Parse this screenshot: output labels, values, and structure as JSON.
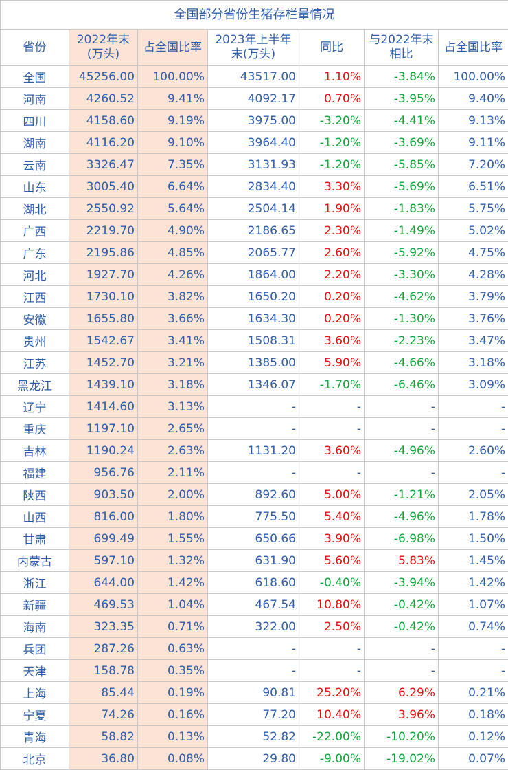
{
  "title": "全国部分省份生猪存栏量情况",
  "table": {
    "header": [
      "省份",
      "2022年末\n(万头)",
      "占全国比率",
      "2023年上半年\n末(万头)",
      "同比",
      "与2022年末\n相比",
      "占全国比率"
    ],
    "rows": [
      [
        "全国",
        "45256.00",
        "100.00%",
        "43517.00",
        "1.10%",
        "-3.84%",
        "100.00%"
      ],
      [
        "河南",
        "4260.52",
        "9.41%",
        "4092.17",
        "0.70%",
        "-3.95%",
        "9.40%"
      ],
      [
        "四川",
        "4158.60",
        "9.19%",
        "3975.00",
        "-3.20%",
        "-4.41%",
        "9.13%"
      ],
      [
        "湖南",
        "4116.20",
        "9.10%",
        "3964.40",
        "-1.20%",
        "-3.69%",
        "9.11%"
      ],
      [
        "云南",
        "3326.47",
        "7.35%",
        "3131.93",
        "-1.20%",
        "-5.85%",
        "7.20%"
      ],
      [
        "山东",
        "3005.40",
        "6.64%",
        "2834.40",
        "3.30%",
        "-5.69%",
        "6.51%"
      ],
      [
        "湖北",
        "2550.92",
        "5.64%",
        "2504.14",
        "1.90%",
        "-1.83%",
        "5.75%"
      ],
      [
        "广西",
        "2219.70",
        "4.90%",
        "2186.65",
        "2.30%",
        "-1.49%",
        "5.02%"
      ],
      [
        "广东",
        "2195.86",
        "4.85%",
        "2065.77",
        "2.60%",
        "-5.92%",
        "4.75%"
      ],
      [
        "河北",
        "1927.70",
        "4.26%",
        "1864.00",
        "2.20%",
        "-3.30%",
        "4.28%"
      ],
      [
        "江西",
        "1730.10",
        "3.82%",
        "1650.20",
        "0.20%",
        "-4.62%",
        "3.79%"
      ],
      [
        "安徽",
        "1655.80",
        "3.66%",
        "1634.30",
        "0.20%",
        "-1.30%",
        "3.76%"
      ],
      [
        "贵州",
        "1542.67",
        "3.41%",
        "1508.31",
        "3.60%",
        "-2.23%",
        "3.47%"
      ],
      [
        "江苏",
        "1452.70",
        "3.21%",
        "1385.00",
        "5.90%",
        "-4.66%",
        "3.18%"
      ],
      [
        "黑龙江",
        "1439.10",
        "3.18%",
        "1346.07",
        "-1.70%",
        "-6.46%",
        "3.09%"
      ],
      [
        "辽宁",
        "1414.60",
        "3.13%",
        "-",
        "-",
        "-",
        "-"
      ],
      [
        "重庆",
        "1197.10",
        "2.65%",
        "-",
        "-",
        "-",
        "-"
      ],
      [
        "吉林",
        "1190.24",
        "2.63%",
        "1131.20",
        "3.60%",
        "-4.96%",
        "2.60%"
      ],
      [
        "福建",
        "956.76",
        "2.11%",
        "-",
        "-",
        "-",
        "-"
      ],
      [
        "陕西",
        "903.50",
        "2.00%",
        "892.60",
        "5.00%",
        "-1.21%",
        "2.05%"
      ],
      [
        "山西",
        "816.00",
        "1.80%",
        "775.50",
        "5.40%",
        "-4.96%",
        "1.78%"
      ],
      [
        "甘肃",
        "699.49",
        "1.55%",
        "650.66",
        "3.90%",
        "-6.98%",
        "1.50%"
      ],
      [
        "内蒙古",
        "597.10",
        "1.32%",
        "631.90",
        "5.60%",
        "5.83%",
        "1.45%"
      ],
      [
        "浙江",
        "644.00",
        "1.42%",
        "618.60",
        "-0.40%",
        "-3.94%",
        "1.42%"
      ],
      [
        "新疆",
        "469.53",
        "1.04%",
        "467.54",
        "10.80%",
        "-0.42%",
        "1.07%"
      ],
      [
        "海南",
        "323.35",
        "0.71%",
        "322.00",
        "2.50%",
        "-0.42%",
        "0.74%"
      ],
      [
        "兵团",
        "287.26",
        "0.63%",
        "-",
        "-",
        "-",
        "-"
      ],
      [
        "天津",
        "158.78",
        "0.35%",
        "-",
        "-",
        "-",
        "-"
      ],
      [
        "上海",
        "85.44",
        "0.19%",
        "90.81",
        "25.20%",
        "6.29%",
        "0.21%"
      ],
      [
        "宁夏",
        "74.26",
        "0.16%",
        "77.20",
        "10.40%",
        "3.96%",
        "0.18%"
      ],
      [
        "青海",
        "58.82",
        "0.13%",
        "52.82",
        "-22.00%",
        "-10.20%",
        "0.12%"
      ],
      [
        "北京",
        "36.80",
        "0.08%",
        "29.80",
        "-9.00%",
        "-19.02%",
        "0.07%"
      ]
    ]
  }
}
